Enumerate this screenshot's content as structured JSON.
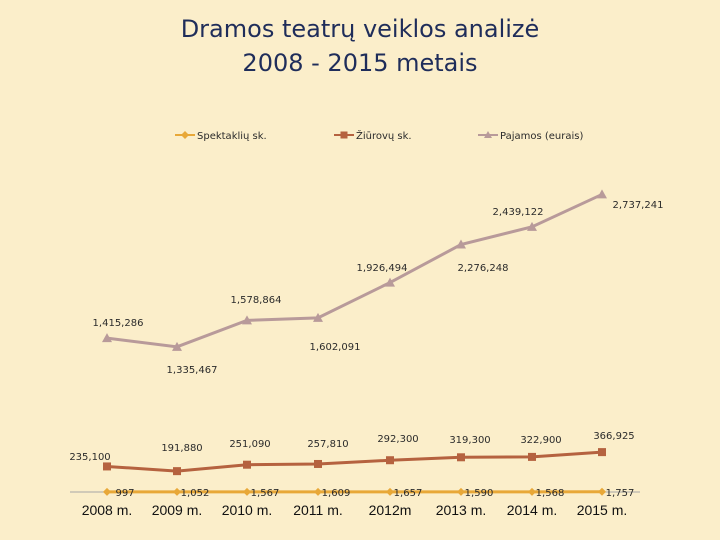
{
  "chart_data": {
    "type": "line",
    "title_lines": [
      "Dramos teatrų veiklos analizė",
      "2008 - 2015 metais"
    ],
    "categories": [
      "2008 m.",
      "2009 m.",
      "2010 m.",
      "2011 m.",
      "2012m",
      "2013 m.",
      "2014 m.",
      "2015 m."
    ],
    "series": [
      {
        "name": "Spektaklių sk.",
        "color": "#e8a838",
        "marker": "diamond",
        "values": [
          997,
          1052,
          1567,
          1609,
          1657,
          1590,
          1568,
          1757
        ],
        "labels": [
          "997",
          "1,052",
          "1,567",
          "1,609",
          "1,657",
          "1,590",
          "1,568",
          "1,757"
        ]
      },
      {
        "name": "Žiūrovų sk.",
        "color": "#b5623f",
        "marker": "square",
        "values": [
          235100,
          191880,
          251090,
          257810,
          292300,
          319300,
          322900,
          366925
        ],
        "labels": [
          "235,100",
          "191,880",
          "251,090",
          "257,810",
          "292,300",
          "319,300",
          "322,900",
          "366,925"
        ]
      },
      {
        "name": "Pajamos (eurais)",
        "color": "#b89a9a",
        "marker": "triangle",
        "values": [
          1415286,
          1335467,
          1578864,
          1602091,
          1926494,
          2276248,
          2439122,
          2737241
        ],
        "labels": [
          "1,415,286",
          "1,335,467",
          "1,578,864",
          "1,602,091",
          "1,926,494",
          "2,276,248",
          "2,439,122",
          "2,737,241"
        ]
      }
    ],
    "ylim": [
      0,
      3100000
    ],
    "legend_position": "top",
    "grid": false
  }
}
